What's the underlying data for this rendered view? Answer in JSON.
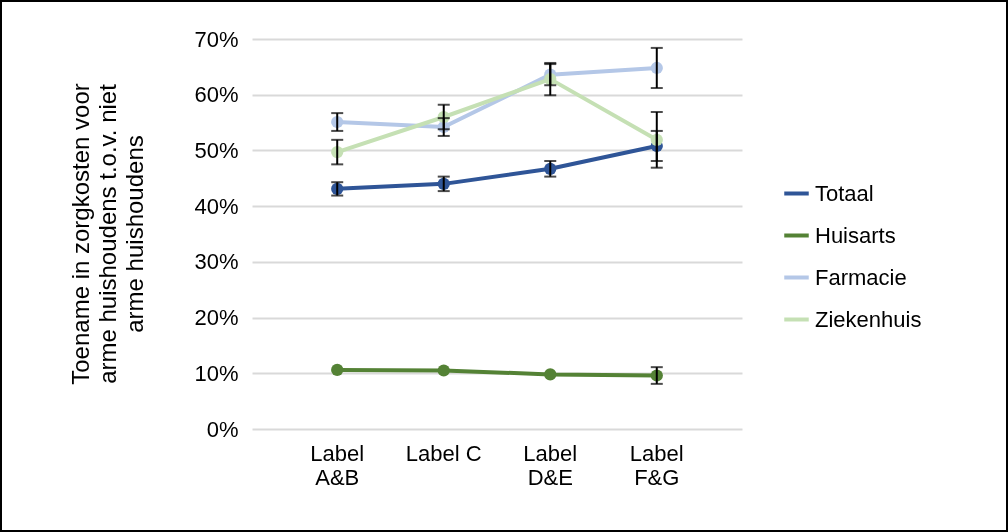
{
  "chart_data": {
    "type": "line",
    "ylabel": "Toename in zorgkosten voor arme huishoudens t.o.v. niet arme huishoudens",
    "categories": [
      "Label A&B",
      "Label C",
      "Label D&E",
      "Label F&G"
    ],
    "series": [
      {
        "name": "Totaal",
        "color": "#2f5597",
        "values": [
          43.1,
          44.0,
          46.7,
          50.8
        ],
        "errors": [
          1.2,
          1.3,
          1.4,
          2.7
        ]
      },
      {
        "name": "Huisarts",
        "color": "#548235",
        "values": [
          10.6,
          10.5,
          9.8,
          9.6
        ],
        "errors": [
          null,
          null,
          null,
          1.5
        ]
      },
      {
        "name": "Farmacie",
        "color": "#b4c7e7",
        "values": [
          55.1,
          54.2,
          63.6,
          64.8
        ],
        "errors": [
          1.6,
          1.6,
          1.9,
          3.6
        ]
      },
      {
        "name": "Ziekenhuis",
        "color": "#c5e0b4",
        "values": [
          49.7,
          56.0,
          62.8,
          51.9
        ],
        "errors": [
          2.2,
          2.2,
          2.9,
          5.0
        ]
      }
    ],
    "ylim": [
      0,
      70
    ],
    "yticks": [
      {
        "value": 0,
        "label": "0%"
      },
      {
        "value": 10,
        "label": "10%"
      },
      {
        "value": 20,
        "label": "20%"
      },
      {
        "value": 30,
        "label": "30%"
      },
      {
        "value": 40,
        "label": "40%"
      },
      {
        "value": 50,
        "label": "50%"
      },
      {
        "value": 60,
        "label": "60%"
      },
      {
        "value": 70,
        "label": "70%"
      }
    ],
    "grid": "y",
    "legend": "right",
    "marker": "circle",
    "line_style": "solid"
  }
}
